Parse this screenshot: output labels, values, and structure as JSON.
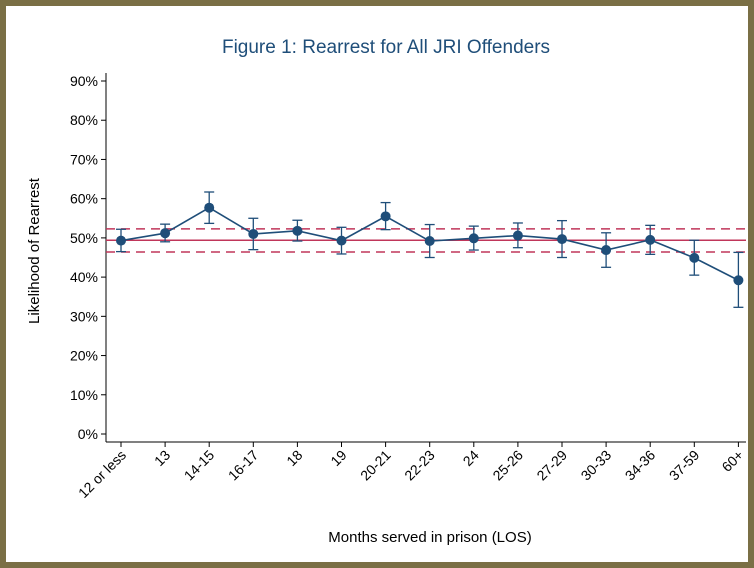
{
  "colors": {
    "border": "#7a6f45",
    "series": "#1f4e79",
    "reference": "#c0365a"
  },
  "chart_data": {
    "type": "line",
    "title": "Figure 1: Rearrest for All JRI Offenders",
    "xlabel": "Months served in prison (LOS)",
    "ylabel": "Likelihood of Rearrest",
    "categories": [
      "12 or less",
      "13",
      "14-15",
      "16-17",
      "18",
      "19",
      "20-21",
      "22-23",
      "24",
      "25-26",
      "27-29",
      "30-33",
      "34-36",
      "37-59",
      "60+"
    ],
    "series": [
      {
        "values": [
          49.3,
          51.2,
          57.7,
          51.0,
          51.8,
          49.3,
          55.5,
          49.2,
          49.9,
          50.6,
          49.7,
          46.9,
          49.5,
          44.9,
          39.2
        ],
        "ci_low": [
          46.5,
          49.0,
          53.7,
          47.0,
          49.2,
          45.9,
          52.1,
          45.0,
          46.9,
          47.5,
          45.0,
          42.5,
          45.8,
          40.5,
          32.3
        ],
        "ci_high": [
          52.2,
          53.5,
          61.7,
          55.0,
          54.5,
          52.7,
          59.0,
          53.4,
          53.0,
          53.8,
          54.4,
          51.3,
          53.2,
          49.4,
          46.3
        ]
      }
    ],
    "reference_lines": {
      "mean": 49.4,
      "ci_low": 46.4,
      "ci_high": 52.3
    },
    "ylim": [
      0,
      90
    ],
    "yticks": [
      0,
      10,
      20,
      30,
      40,
      50,
      60,
      70,
      80,
      90
    ],
    "ytick_labels": [
      "0%",
      "10%",
      "20%",
      "30%",
      "40%",
      "50%",
      "60%",
      "70%",
      "80%",
      "90%"
    ],
    "grid": false
  }
}
